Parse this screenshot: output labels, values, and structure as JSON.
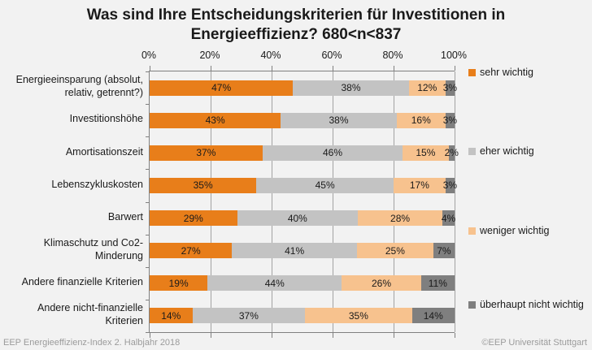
{
  "title": {
    "line1": "Was sind Ihre Entscheidungskriterien für Investitionen in",
    "line2": "Energieeffizienz? 680<n<837"
  },
  "footer": {
    "left": "EEP Energieeffizienz-Index 2. Halbjahr 2018",
    "right": "©EEP Universität Stuttgart"
  },
  "chart_data": {
    "type": "bar",
    "orientation": "horizontal",
    "stacked": true,
    "title": "Was sind Ihre Entscheidungskriterien für Investitionen in Energieeffizienz? 680<n<837",
    "categories": [
      "Energieeinsparung (absolut, relativ, getrennt?)",
      "Investitionshöhe",
      "Amortisationszeit",
      "Lebenszykluskosten",
      "Barwert",
      "Klimaschutz und Co2-Minderung",
      "Andere finanzielle Kriterien",
      "Andere nicht-finanzielle Kriterien"
    ],
    "series": [
      {
        "name": "sehr wichtig",
        "color": "#E87E1A",
        "values": [
          47,
          43,
          37,
          35,
          29,
          27,
          19,
          14
        ]
      },
      {
        "name": "eher wichtig",
        "color": "#C3C3C3",
        "values": [
          38,
          38,
          46,
          45,
          40,
          41,
          44,
          37
        ]
      },
      {
        "name": "weniger wichtig",
        "color": "#F7C28E",
        "values": [
          12,
          16,
          15,
          17,
          28,
          25,
          26,
          35
        ]
      },
      {
        "name": "überhaupt nicht wichtig",
        "color": "#7F7F7F",
        "values": [
          3,
          3,
          2,
          3,
          4,
          7,
          11,
          14
        ]
      }
    ],
    "x_ticks": [
      "0%",
      "20%",
      "40%",
      "60%",
      "80%",
      "100%"
    ],
    "xlim": [
      0,
      100
    ],
    "grid": true,
    "legend_position": "right",
    "value_label_format": "{value}%"
  }
}
